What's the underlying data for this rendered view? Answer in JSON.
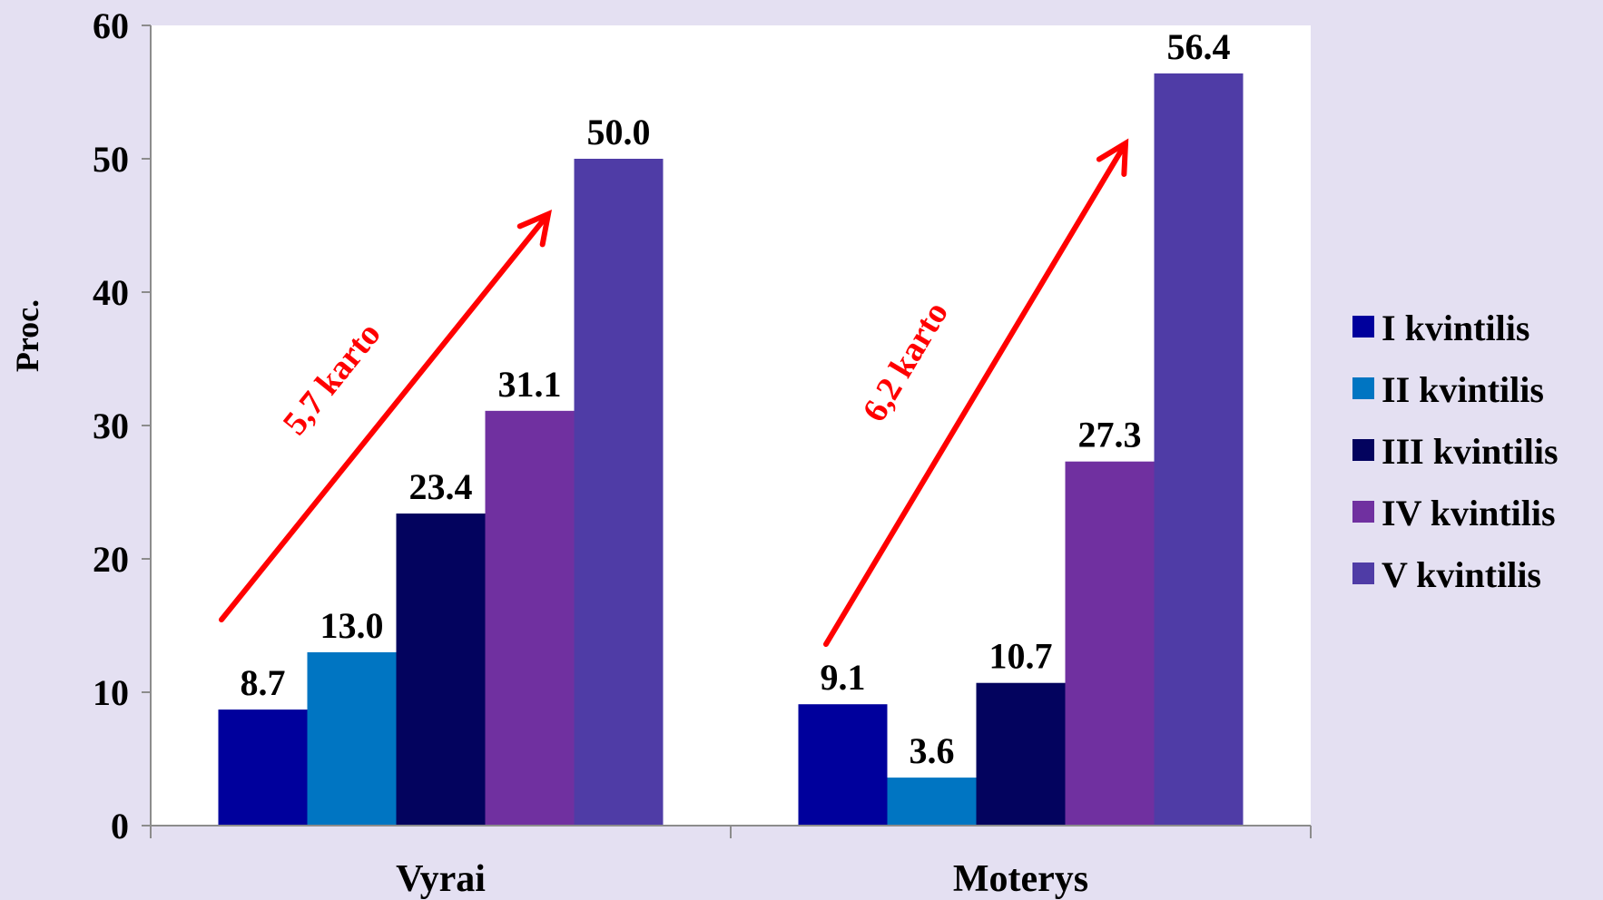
{
  "chart_data": {
    "type": "bar",
    "title": "",
    "xlabel": "",
    "ylabel": "Proc.",
    "ylim": [
      0,
      60
    ],
    "yticks": [
      "0",
      "10",
      "20",
      "30",
      "40",
      "50",
      "60"
    ],
    "categories": [
      "Vyrai",
      "Moterys"
    ],
    "series": [
      {
        "name": "I kvintilis",
        "color": "#00009c",
        "values": [
          8.7,
          9.1
        ],
        "labels": [
          "8.7",
          "9.1"
        ]
      },
      {
        "name": "II kvintilis",
        "color": "#0075c2",
        "values": [
          13.0,
          3.6
        ],
        "labels": [
          "13.0",
          "3.6"
        ]
      },
      {
        "name": "III kvintilis",
        "color": "#03035e",
        "values": [
          23.4,
          10.7
        ],
        "labels": [
          "23.4",
          "10.7"
        ]
      },
      {
        "name": "IV kvintilis",
        "color": "#7030a0",
        "values": [
          31.1,
          27.3
        ],
        "labels": [
          "31.1",
          "27.3"
        ]
      },
      {
        "name": "V kvintilis",
        "color": "#4f3ca6",
        "values": [
          50.0,
          56.4
        ],
        "labels": [
          "50.0",
          "56.4"
        ]
      }
    ],
    "grid": false,
    "legend_position": "right",
    "annotations": [
      {
        "text": "5,7 karto",
        "color": "#ff0000"
      },
      {
        "text": "6,2  karto",
        "color": "#ff0000"
      }
    ]
  }
}
